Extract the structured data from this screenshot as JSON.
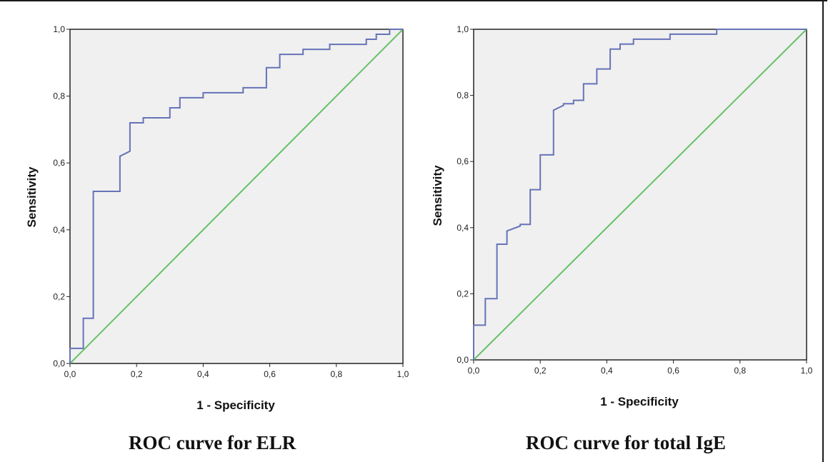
{
  "colors": {
    "roc_line": "#6673b8",
    "reference_line": "#66c166",
    "plot_bg": "#f0f0f0",
    "axis": "#222222"
  },
  "chart_data": [
    {
      "type": "line",
      "caption": "ROC curve for ELR",
      "xlabel": "1 - Specificity",
      "ylabel": "Sensitivity",
      "xlim": [
        0,
        1
      ],
      "ylim": [
        0,
        1
      ],
      "xticks": [
        "0,0",
        "0,2",
        "0,4",
        "0,6",
        "0,8",
        "1,0"
      ],
      "yticks": [
        "0,0",
        "0,2",
        "0,4",
        "0,6",
        "0,8",
        "1,0"
      ],
      "grid": false,
      "series": [
        {
          "x": [
            0,
            0,
            0.04,
            0.04,
            0.07,
            0.07,
            0.15,
            0.15,
            0.18,
            0.18,
            0.22,
            0.22,
            0.3,
            0.3,
            0.33,
            0.33,
            0.4,
            0.4,
            0.52,
            0.52,
            0.59,
            0.59,
            0.63,
            0.63,
            0.7,
            0.7,
            0.78,
            0.78,
            0.89,
            0.89,
            0.92,
            0.92,
            0.96,
            0.96,
            1.0
          ],
          "y": [
            0,
            0.045,
            0.045,
            0.135,
            0.135,
            0.515,
            0.515,
            0.62,
            0.635,
            0.72,
            0.72,
            0.735,
            0.735,
            0.765,
            0.765,
            0.795,
            0.795,
            0.81,
            0.81,
            0.825,
            0.825,
            0.885,
            0.885,
            0.925,
            0.925,
            0.94,
            0.94,
            0.955,
            0.955,
            0.97,
            0.97,
            0.985,
            0.985,
            1.0,
            1.0
          ]
        },
        {
          "x": [
            0,
            1
          ],
          "y": [
            0,
            1
          ]
        }
      ]
    },
    {
      "type": "line",
      "caption": "ROC curve for total IgE",
      "xlabel": "1 - Specificity",
      "ylabel": "Sensitivity",
      "xlim": [
        0,
        1
      ],
      "ylim": [
        0,
        1
      ],
      "xticks": [
        "0,0",
        "0,2",
        "0,4",
        "0,6",
        "0,8",
        "1,0"
      ],
      "yticks": [
        "0,0",
        "0,2",
        "0,4",
        "0,6",
        "0,8",
        "1,0"
      ],
      "grid": false,
      "series": [
        {
          "x": [
            0,
            0,
            0.035,
            0.035,
            0.07,
            0.07,
            0.1,
            0.1,
            0.14,
            0.14,
            0.17,
            0.17,
            0.2,
            0.2,
            0.24,
            0.24,
            0.27,
            0.27,
            0.3,
            0.3,
            0.33,
            0.33,
            0.37,
            0.37,
            0.41,
            0.41,
            0.44,
            0.44,
            0.48,
            0.48,
            0.59,
            0.59,
            0.73,
            0.73,
            1.0
          ],
          "y": [
            0,
            0.105,
            0.105,
            0.185,
            0.185,
            0.35,
            0.35,
            0.39,
            0.405,
            0.41,
            0.41,
            0.515,
            0.515,
            0.62,
            0.62,
            0.755,
            0.77,
            0.775,
            0.775,
            0.785,
            0.785,
            0.835,
            0.835,
            0.88,
            0.88,
            0.94,
            0.94,
            0.955,
            0.955,
            0.97,
            0.97,
            0.985,
            0.985,
            1.0,
            1.0
          ]
        },
        {
          "x": [
            0,
            1
          ],
          "y": [
            0,
            1
          ]
        }
      ]
    }
  ]
}
